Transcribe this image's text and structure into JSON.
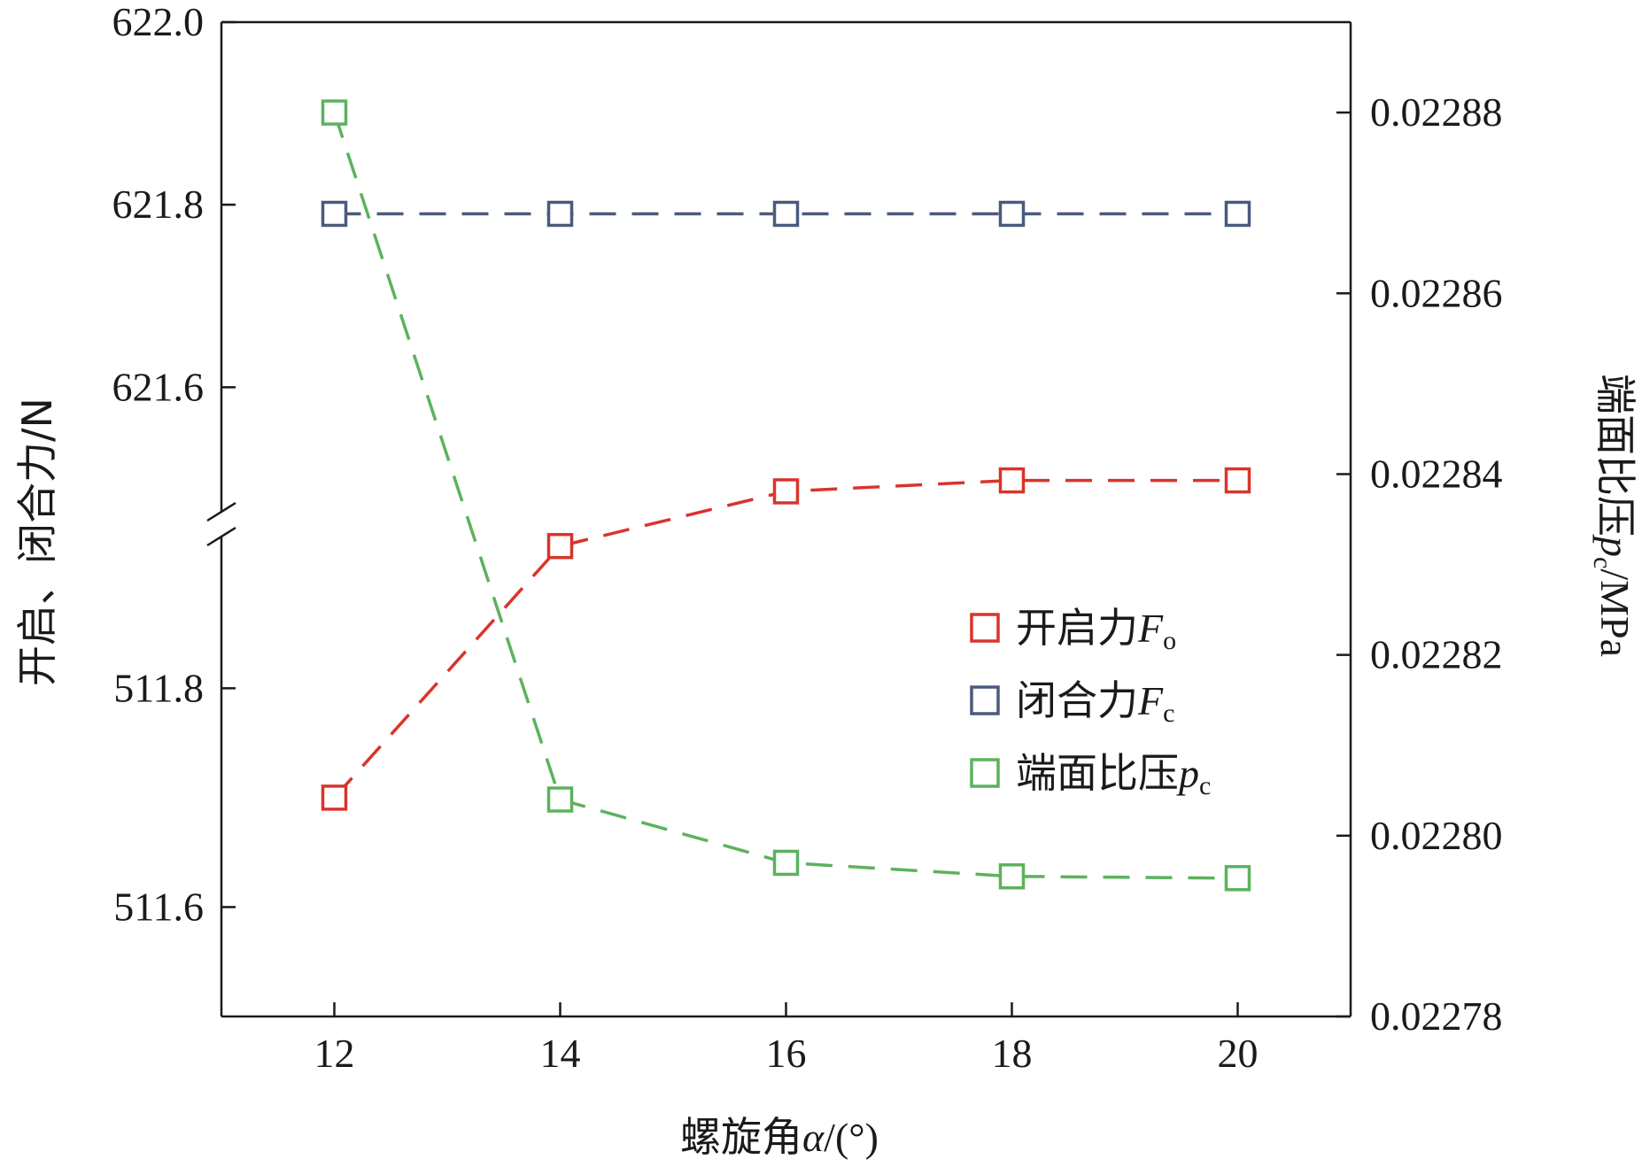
{
  "chart_data": {
    "type": "line",
    "x": [
      12,
      14,
      16,
      18,
      20
    ],
    "xlim": [
      11,
      21
    ],
    "xticks": [
      "12",
      "14",
      "16",
      "18",
      "20"
    ],
    "xlabel": {
      "prefix": "螺旋角",
      "symbol": "α",
      "suffix": "/(°)"
    },
    "left_axis": {
      "label": "开启、闭合力/N",
      "broken": true,
      "upper_segment_ylim": [
        621.45,
        622.0
      ],
      "lower_segment_ylim": [
        511.5,
        511.95
      ],
      "ticks": [
        "622.0",
        "621.8",
        "621.6",
        "511.8",
        "511.6"
      ]
    },
    "right_axis": {
      "label": {
        "prefix": "端面比压",
        "symbol": "p",
        "sub": "c",
        "suffix": "/MPa"
      },
      "ylim": [
        0.02278,
        0.02289
      ],
      "ticks": [
        "0.02288",
        "0.02286",
        "0.02284",
        "0.02282",
        "0.02280",
        "0.02278"
      ]
    },
    "series": [
      {
        "name": {
          "prefix": "开启力",
          "symbol": "F",
          "sub": "o"
        },
        "axis": "left-lower",
        "color": "#d9342b",
        "values": [
          511.7,
          511.93,
          511.98,
          511.99,
          511.99
        ]
      },
      {
        "name": {
          "prefix": "闭合力",
          "symbol": "F",
          "sub": "c"
        },
        "axis": "left-upper",
        "color": "#4a5a7e",
        "values": [
          621.79,
          621.79,
          621.79,
          621.79,
          621.79
        ]
      },
      {
        "name": {
          "prefix": "端面比压",
          "symbol": "p",
          "sub": "c"
        },
        "axis": "right",
        "color": "#5cb25d",
        "values": [
          0.02288,
          0.022804,
          0.022797,
          0.0227955,
          0.0227953
        ]
      }
    ],
    "legend_position": "right-middle",
    "grid": false
  }
}
